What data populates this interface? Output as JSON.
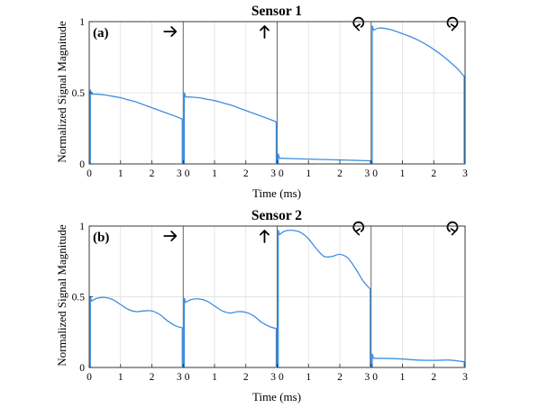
{
  "chart_data": [
    {
      "type": "line",
      "title": "Sensor 1",
      "panel_label": "(a)",
      "xlabel": "Time (ms)",
      "ylabel": "Normalized Signal Magnitude",
      "ylim": [
        0,
        1
      ],
      "yticks": [
        "0",
        "0.5",
        "1"
      ],
      "segment_xticks": [
        "0",
        "1",
        "2",
        "3"
      ],
      "segment_xlim": [
        0,
        3
      ],
      "grid": true,
      "line_color": "#3d8fe0",
      "segments": [
        {
          "icon": "arrow-right-icon",
          "x": [
            0,
            0.25,
            0.5,
            0.75,
            1.0,
            1.25,
            1.5,
            1.75,
            2.0,
            2.25,
            2.5,
            2.75,
            3.0
          ],
          "y": [
            0.49,
            0.49,
            0.485,
            0.475,
            0.465,
            0.45,
            0.435,
            0.415,
            0.395,
            0.375,
            0.355,
            0.335,
            0.315
          ]
        },
        {
          "icon": "arrow-up-icon",
          "x": [
            0,
            0.25,
            0.5,
            0.75,
            1.0,
            1.25,
            1.5,
            1.75,
            2.0,
            2.25,
            2.5,
            2.75,
            3.0
          ],
          "y": [
            0.47,
            0.47,
            0.465,
            0.455,
            0.445,
            0.43,
            0.415,
            0.395,
            0.375,
            0.355,
            0.335,
            0.315,
            0.295
          ]
        },
        {
          "icon": "rotate-counterclockwise-icon",
          "x": [
            0,
            0.5,
            1.0,
            1.5,
            2.0,
            2.5,
            3.0
          ],
          "y": [
            0.04,
            0.037,
            0.034,
            0.031,
            0.028,
            0.025,
            0.022
          ]
        },
        {
          "icon": "rotate-clockwise-icon",
          "x": [
            0,
            0.25,
            0.5,
            0.75,
            1.0,
            1.25,
            1.5,
            1.75,
            2.0,
            2.25,
            2.5,
            2.75,
            3.0
          ],
          "y": [
            0.94,
            0.955,
            0.95,
            0.935,
            0.915,
            0.895,
            0.87,
            0.84,
            0.805,
            0.765,
            0.72,
            0.67,
            0.615
          ]
        }
      ]
    },
    {
      "type": "line",
      "title": "Sensor 2",
      "panel_label": "(b)",
      "xlabel": "Time (ms)",
      "ylabel": "Normalized Signal Magnitude",
      "ylim": [
        0,
        1
      ],
      "yticks": [
        "0",
        "0.5",
        "1"
      ],
      "segment_xticks": [
        "0",
        "1",
        "2",
        "3"
      ],
      "segment_xlim": [
        0,
        3
      ],
      "grid": true,
      "line_color": "#3d8fe0",
      "segments": [
        {
          "icon": "arrow-right-icon",
          "x": [
            0,
            0.25,
            0.5,
            0.75,
            1.0,
            1.25,
            1.5,
            1.75,
            2.0,
            2.25,
            2.5,
            2.75,
            3.0
          ],
          "y": [
            0.47,
            0.49,
            0.495,
            0.48,
            0.445,
            0.41,
            0.395,
            0.4,
            0.4,
            0.375,
            0.33,
            0.295,
            0.28
          ]
        },
        {
          "icon": "arrow-up-icon",
          "x": [
            0,
            0.25,
            0.5,
            0.75,
            1.0,
            1.25,
            1.5,
            1.75,
            2.0,
            2.25,
            2.5,
            2.75,
            3.0
          ],
          "y": [
            0.46,
            0.48,
            0.485,
            0.47,
            0.435,
            0.4,
            0.385,
            0.395,
            0.39,
            0.365,
            0.32,
            0.29,
            0.275
          ]
        },
        {
          "icon": "rotate-counterclockwise-icon",
          "x": [
            0,
            0.25,
            0.5,
            0.75,
            1.0,
            1.25,
            1.5,
            1.75,
            2.0,
            2.25,
            2.5,
            2.75,
            3.0
          ],
          "y": [
            0.94,
            0.965,
            0.97,
            0.955,
            0.91,
            0.84,
            0.785,
            0.785,
            0.8,
            0.775,
            0.7,
            0.61,
            0.555
          ]
        },
        {
          "icon": "rotate-clockwise-icon",
          "x": [
            0,
            0.5,
            1.0,
            1.5,
            2.0,
            2.5,
            3.0
          ],
          "y": [
            0.065,
            0.064,
            0.06,
            0.052,
            0.05,
            0.052,
            0.04
          ]
        }
      ]
    }
  ]
}
